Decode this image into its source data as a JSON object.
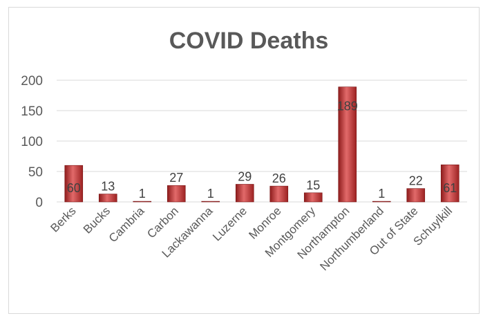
{
  "chart_data": {
    "type": "bar",
    "title": "COVID Deaths",
    "categories": [
      "Berks",
      "Bucks",
      "Cambria",
      "Carbon",
      "Lackawanna",
      "Luzerne",
      "Monroe",
      "Montgomery",
      "Northampton",
      "Northumberland",
      "Out of State",
      "Schuylkill"
    ],
    "series": [
      {
        "values": [
          60,
          13,
          1,
          27,
          1,
          29,
          26,
          15,
          189,
          1,
          22,
          61
        ]
      }
    ],
    "ylim": [
      0,
      200
    ],
    "yticks": [
      0,
      50,
      100,
      150,
      200
    ],
    "grid": true,
    "data_labels": true,
    "bar_color": "#c0302f",
    "grid_color": "#d9d9d9"
  }
}
